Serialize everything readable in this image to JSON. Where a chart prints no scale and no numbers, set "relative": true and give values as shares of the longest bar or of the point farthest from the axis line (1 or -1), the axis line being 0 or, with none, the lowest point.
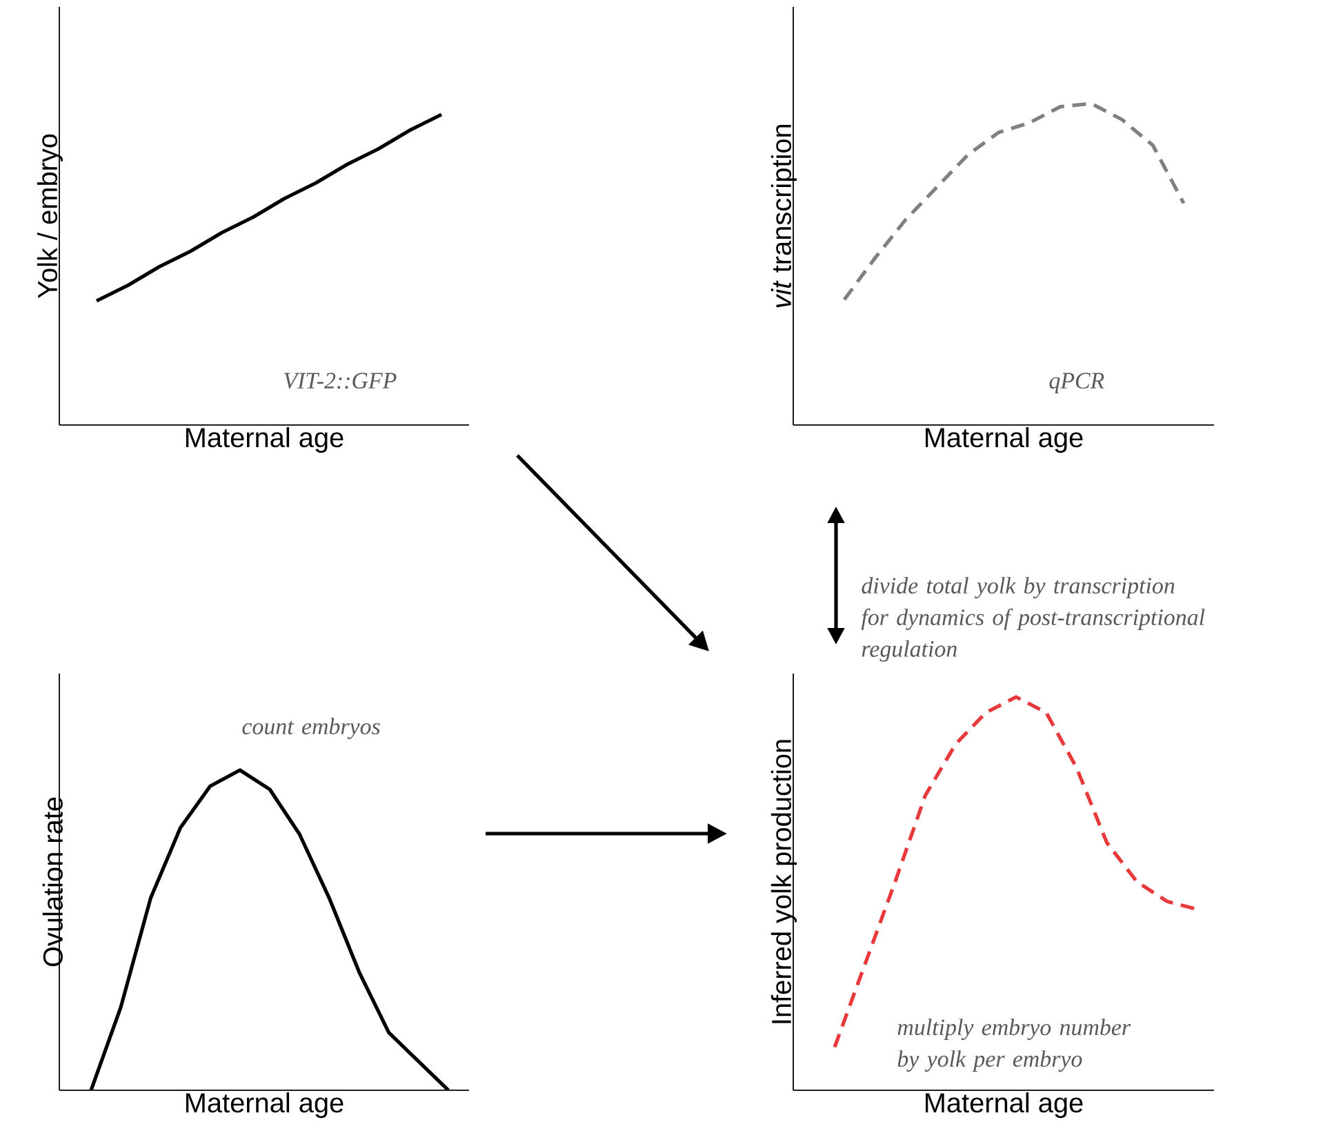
{
  "chart_data": [
    {
      "type": "line",
      "relative": true,
      "xlabel": "Maternal age",
      "ylabel": "Yolk / embryo",
      "categories": [
        null,
        null,
        null,
        null,
        null,
        null,
        null,
        null,
        null,
        null,
        null,
        null
      ],
      "series": [
        {
          "color": "#000000",
          "line_style": "solid",
          "values": [
            0.4,
            0.45,
            0.51,
            0.56,
            0.62,
            0.67,
            0.73,
            0.78,
            0.84,
            0.89,
            0.95,
            1
          ]
        }
      ],
      "annotations": [
        "VIT-2::GFP"
      ]
    },
    {
      "type": "line",
      "relative": true,
      "xlabel": "Maternal age",
      "ylabel": "*vit* transcription",
      "categories": [
        null,
        null,
        null,
        null,
        null,
        null,
        null,
        null,
        null,
        null,
        null,
        null
      ],
      "series": [
        {
          "color": "#808080",
          "line_style": "dashed",
          "values": [
            0.39,
            0.52,
            0.64,
            0.74,
            0.84,
            0.91,
            0.94,
            0.99,
            1,
            0.95,
            0.87,
            0.69
          ]
        }
      ],
      "annotations": [
        "qPCR"
      ]
    },
    {
      "type": "line",
      "relative": true,
      "xlabel": "Maternal age",
      "ylabel": "Ovulation rate",
      "categories": [
        null,
        null,
        null,
        null,
        null,
        null,
        null,
        null,
        null,
        null,
        null,
        null,
        null
      ],
      "series": [
        {
          "color": "#000000",
          "line_style": "solid",
          "values": [
            0,
            0.26,
            0.6,
            0.82,
            0.95,
            1,
            0.94,
            0.8,
            0.6,
            0.37,
            0.18,
            0.09,
            0
          ]
        }
      ],
      "annotations": [
        "count embryos"
      ]
    },
    {
      "type": "line",
      "relative": true,
      "xlabel": "Maternal age",
      "ylabel": "Inferred yolk production",
      "categories": [
        null,
        null,
        null,
        null,
        null,
        null,
        null,
        null,
        null,
        null,
        null,
        null,
        null
      ],
      "series": [
        {
          "color": "#e8393a",
          "line_style": "dashed",
          "values": [
            0.11,
            0.32,
            0.53,
            0.75,
            0.88,
            0.96,
            1,
            0.96,
            0.82,
            0.63,
            0.53,
            0.48,
            0.46
          ]
        }
      ],
      "annotations": [
        "divide total yolk by transcription for dynamics of post-transcriptional regulation",
        "multiply embryo number by yolk per embryo"
      ]
    }
  ]
}
